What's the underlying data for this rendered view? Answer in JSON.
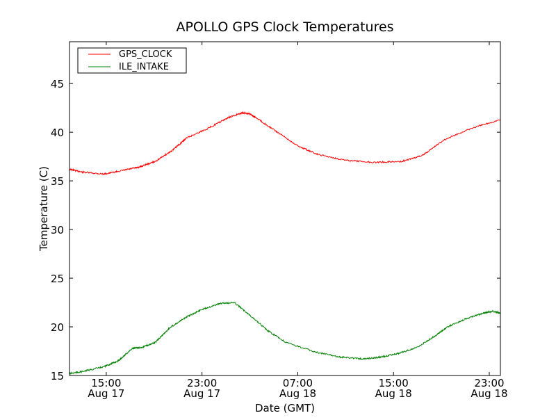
{
  "chart_data": {
    "type": "line",
    "title": "APOLLO GPS Clock Temperatures",
    "xlabel": "Date (GMT)",
    "ylabel": "Temperature (C)",
    "x_units": "hours since Aug 17 00:00 GMT",
    "xlim": [
      11.93,
      47.93
    ],
    "ylim": [
      15,
      49.3
    ],
    "grid": false,
    "legend_position": "top-left",
    "yticks": [
      15,
      20,
      25,
      30,
      35,
      40,
      45
    ],
    "xticks": [
      {
        "value": 15,
        "time": "15:00",
        "date": "Aug 17"
      },
      {
        "value": 23,
        "time": "23:00",
        "date": "Aug 17"
      },
      {
        "value": 31,
        "time": "07:00",
        "date": "Aug 18"
      },
      {
        "value": 39,
        "time": "15:00",
        "date": "Aug 18"
      },
      {
        "value": 47,
        "time": "23:00",
        "date": "Aug 18"
      }
    ],
    "series": [
      {
        "name": "GPS_CLOCK",
        "color": "#ff0000",
        "x": [
          11.93,
          13.0,
          14.8,
          16.5,
          17.7,
          19.1,
          20.6,
          21.7,
          23.5,
          25.2,
          26.4,
          27.0,
          27.5,
          29.3,
          31.0,
          32.7,
          35.1,
          37.4,
          39.7,
          41.4,
          43.2,
          45.5,
          47.93
        ],
        "y": [
          36.2,
          35.9,
          35.7,
          36.1,
          36.4,
          37.0,
          38.2,
          39.4,
          40.4,
          41.5,
          42.0,
          41.9,
          41.5,
          40.0,
          38.6,
          37.7,
          37.1,
          36.9,
          37.0,
          37.6,
          39.2,
          40.4,
          41.3
        ]
      },
      {
        "name": "ILE_INTAKE",
        "color": "#008000",
        "x": [
          11.93,
          13.0,
          14.8,
          16.0,
          17.2,
          18.0,
          19.1,
          20.3,
          21.7,
          23.0,
          24.5,
          25.7,
          27.0,
          28.5,
          30.0,
          32.5,
          34.5,
          36.5,
          38.0,
          39.5,
          41.0,
          42.5,
          43.5,
          45.0,
          46.5,
          47.3,
          47.93
        ],
        "y": [
          15.2,
          15.4,
          15.9,
          16.5,
          17.8,
          17.9,
          18.4,
          19.9,
          21.0,
          21.8,
          22.4,
          22.5,
          21.2,
          19.6,
          18.4,
          17.4,
          16.9,
          16.7,
          16.9,
          17.3,
          17.9,
          19.1,
          20.0,
          20.8,
          21.4,
          21.6,
          21.4
        ]
      }
    ]
  }
}
